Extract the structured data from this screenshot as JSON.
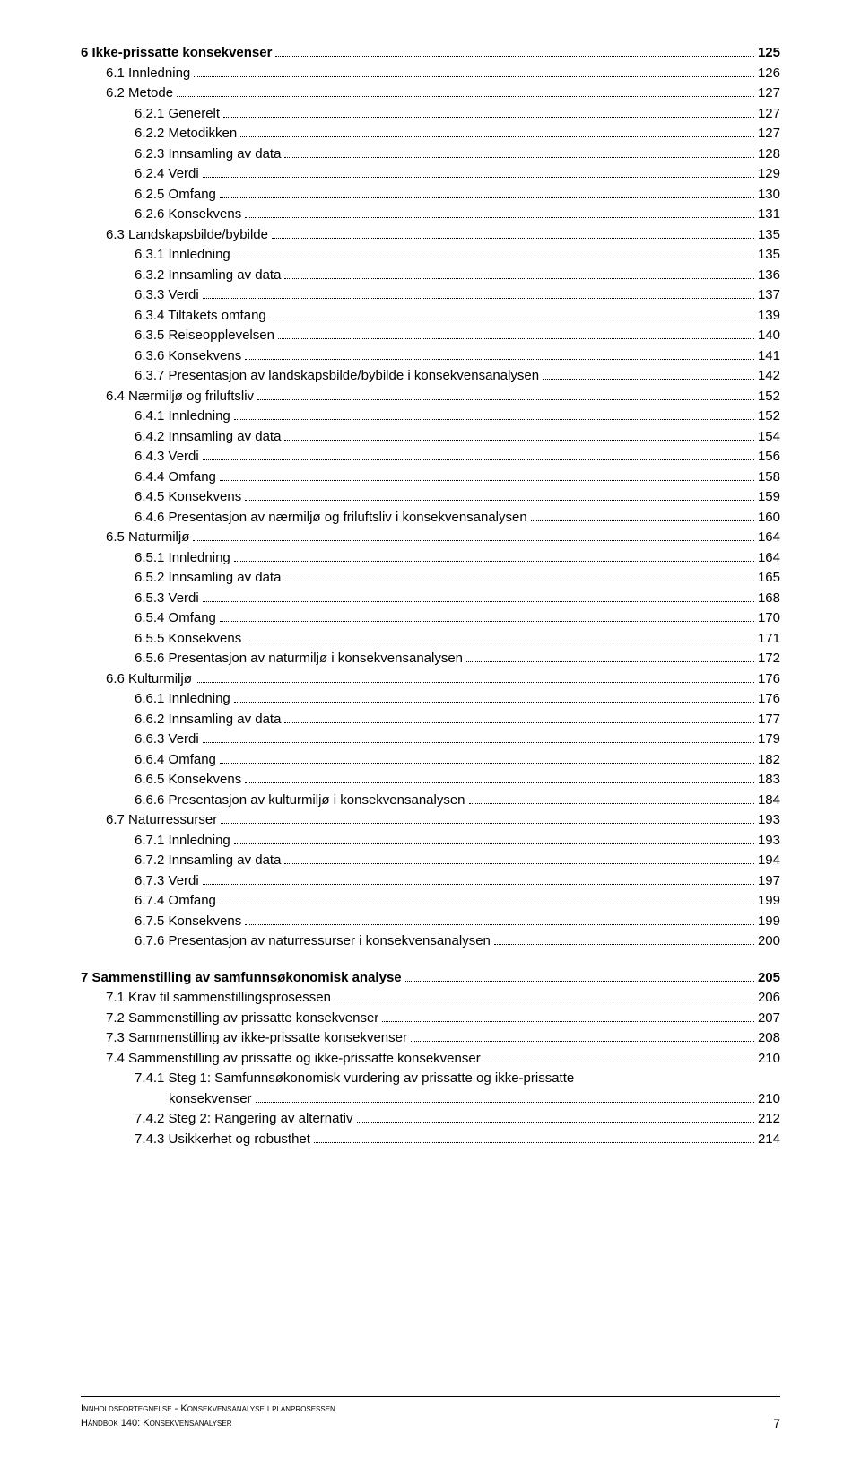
{
  "toc": [
    {
      "level": 0,
      "label": "6  Ikke-prissatte konsekvenser",
      "page": "125"
    },
    {
      "level": 1,
      "label": "6.1  Innledning",
      "page": "126"
    },
    {
      "level": 1,
      "label": "6.2  Metode",
      "page": "127"
    },
    {
      "level": 2,
      "label": "6.2.1  Generelt",
      "page": "127"
    },
    {
      "level": 2,
      "label": "6.2.2  Metodikken",
      "page": "127"
    },
    {
      "level": 2,
      "label": "6.2.3  Innsamling av data",
      "page": "128"
    },
    {
      "level": 2,
      "label": "6.2.4  Verdi",
      "page": "129"
    },
    {
      "level": 2,
      "label": "6.2.5  Omfang",
      "page": "130"
    },
    {
      "level": 2,
      "label": "6.2.6  Konsekvens",
      "page": "131"
    },
    {
      "level": 1,
      "label": "6.3  Landskapsbilde/bybilde",
      "page": "135"
    },
    {
      "level": 2,
      "label": "6.3.1  Innledning",
      "page": "135"
    },
    {
      "level": 2,
      "label": "6.3.2  Innsamling av data",
      "page": "136"
    },
    {
      "level": 2,
      "label": "6.3.3  Verdi",
      "page": "137"
    },
    {
      "level": 2,
      "label": "6.3.4  Tiltakets omfang",
      "page": "139"
    },
    {
      "level": 2,
      "label": "6.3.5  Reiseopplevelsen",
      "page": "140"
    },
    {
      "level": 2,
      "label": "6.3.6  Konsekvens",
      "page": "141"
    },
    {
      "level": 2,
      "label": "6.3.7  Presentasjon av landskapsbilde/bybilde i konsekvensanalysen",
      "page": "142"
    },
    {
      "level": 1,
      "label": "6.4  Nærmiljø og friluftsliv",
      "page": "152"
    },
    {
      "level": 2,
      "label": "6.4.1  Innledning",
      "page": "152"
    },
    {
      "level": 2,
      "label": "6.4.2  Innsamling av data",
      "page": "154"
    },
    {
      "level": 2,
      "label": "6.4.3  Verdi",
      "page": "156"
    },
    {
      "level": 2,
      "label": "6.4.4  Omfang",
      "page": "158"
    },
    {
      "level": 2,
      "label": "6.4.5  Konsekvens",
      "page": "159"
    },
    {
      "level": 2,
      "label": "6.4.6  Presentasjon av nærmiljø og friluftsliv i konsekvensanalysen",
      "page": "160"
    },
    {
      "level": 1,
      "label": "6.5  Naturmiljø",
      "page": "164"
    },
    {
      "level": 2,
      "label": "6.5.1  Innledning",
      "page": "164"
    },
    {
      "level": 2,
      "label": "6.5.2  Innsamling av data",
      "page": "165"
    },
    {
      "level": 2,
      "label": "6.5.3  Verdi",
      "page": "168"
    },
    {
      "level": 2,
      "label": "6.5.4  Omfang",
      "page": "170"
    },
    {
      "level": 2,
      "label": "6.5.5  Konsekvens",
      "page": "171"
    },
    {
      "level": 2,
      "label": "6.5.6  Presentasjon av naturmiljø i konsekvensanalysen",
      "page": "172"
    },
    {
      "level": 1,
      "label": "6.6  Kulturmiljø",
      "page": "176"
    },
    {
      "level": 2,
      "label": "6.6.1  Innledning",
      "page": "176"
    },
    {
      "level": 2,
      "label": "6.6.2  Innsamling av data",
      "page": "177"
    },
    {
      "level": 2,
      "label": "6.6.3  Verdi",
      "page": "179"
    },
    {
      "level": 2,
      "label": "6.6.4  Omfang",
      "page": "182"
    },
    {
      "level": 2,
      "label": "6.6.5  Konsekvens",
      "page": "183"
    },
    {
      "level": 2,
      "label": "6.6.6  Presentasjon av kulturmiljø i konsekvensanalysen",
      "page": "184"
    },
    {
      "level": 1,
      "label": "6.7  Naturressurser",
      "page": "193"
    },
    {
      "level": 2,
      "label": "6.7.1  Innledning",
      "page": "193"
    },
    {
      "level": 2,
      "label": "6.7.2  Innsamling av data",
      "page": "194"
    },
    {
      "level": 2,
      "label": "6.7.3  Verdi",
      "page": "197"
    },
    {
      "level": 2,
      "label": "6.7.4  Omfang",
      "page": "199"
    },
    {
      "level": 2,
      "label": "6.7.5  Konsekvens",
      "page": "199"
    },
    {
      "level": 2,
      "label": "6.7.6  Presentasjon av naturressurser i konsekvensanalysen",
      "page": "200"
    },
    {
      "break": true
    },
    {
      "level": 0,
      "label": "7  Sammenstilling av samfunnsøkonomisk analyse",
      "page": "205"
    },
    {
      "level": 1,
      "label": "7.1  Krav til sammenstillingsprosessen",
      "page": "206"
    },
    {
      "level": 1,
      "label": "7.2  Sammenstilling av prissatte konsekvenser",
      "page": "207"
    },
    {
      "level": 1,
      "label": "7.3  Sammenstilling av ikke-prissatte konsekvenser",
      "page": "208"
    },
    {
      "level": 1,
      "label": "7.4  Sammenstilling av prissatte og ikke-prissatte konsekvenser",
      "page": "210"
    },
    {
      "level": 2,
      "label": "7.4.1  Steg 1: Samfunnsøkonomisk vurdering av prissatte og ikke-prissatte",
      "cont": "konsekvenser",
      "page": "210"
    },
    {
      "level": 2,
      "label": "7.4.2  Steg 2: Rangering av alternativ",
      "page": "212"
    },
    {
      "level": 2,
      "label": "7.4.3  Usikkerhet og robusthet",
      "page": "214"
    }
  ],
  "footer": {
    "line1": "Innholdsfortegnelse - Konsekvensanalyse i planprosessen",
    "line2": "Håndbok 140: Konsekvensanalyser",
    "page": "7"
  }
}
